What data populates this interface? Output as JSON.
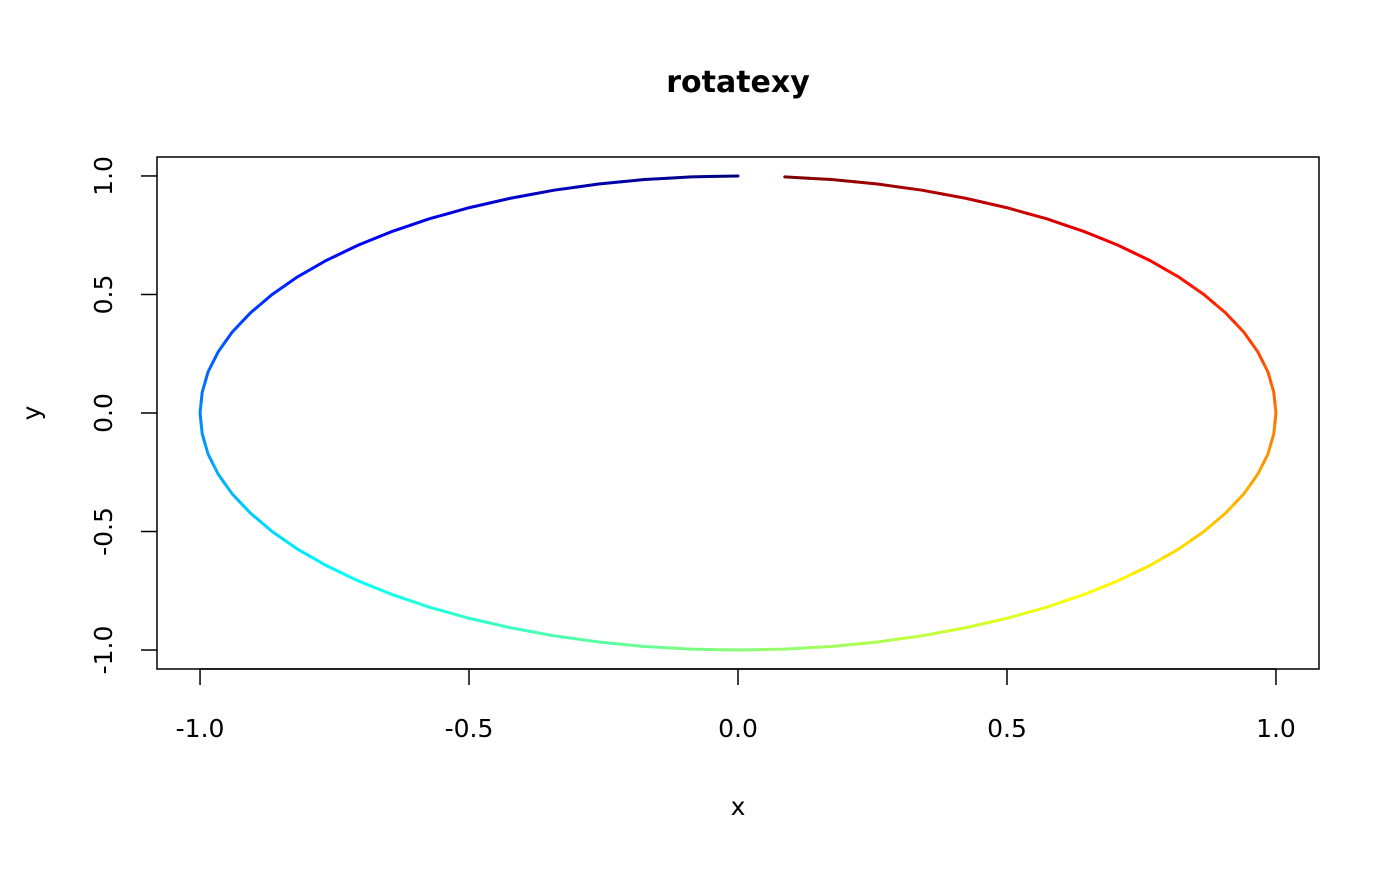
{
  "chart_data": {
    "type": "line",
    "title": "rotatexy",
    "x_label": "x",
    "y_label": "y",
    "x": [
      0,
      -0.087,
      -0.174,
      -0.259,
      -0.342,
      -0.423,
      -0.5,
      -0.574,
      -0.643,
      -0.707,
      -0.766,
      -0.819,
      -0.866,
      -0.906,
      -0.94,
      -0.966,
      -0.985,
      -0.996,
      -1,
      -0.996,
      -0.985,
      -0.966,
      -0.94,
      -0.906,
      -0.866,
      -0.819,
      -0.766,
      -0.707,
      -0.643,
      -0.574,
      -0.5,
      -0.423,
      -0.342,
      -0.259,
      -0.174,
      -0.087,
      0,
      0.087,
      0.174,
      0.259,
      0.342,
      0.423,
      0.5,
      0.574,
      0.643,
      0.707,
      0.766,
      0.819,
      0.866,
      0.906,
      0.94,
      0.966,
      0.985,
      0.996,
      1,
      0.996,
      0.985,
      0.966,
      0.94,
      0.906,
      0.866,
      0.819,
      0.766,
      0.707,
      0.643,
      0.574,
      0.5,
      0.423,
      0.342,
      0.259,
      0.174,
      0.087
    ],
    "values": [
      1,
      0.996,
      0.985,
      0.966,
      0.94,
      0.906,
      0.866,
      0.819,
      0.766,
      0.707,
      0.643,
      0.574,
      0.5,
      0.423,
      0.342,
      0.259,
      0.174,
      0.087,
      0,
      -0.087,
      -0.174,
      -0.259,
      -0.342,
      -0.423,
      -0.5,
      -0.574,
      -0.643,
      -0.707,
      -0.766,
      -0.819,
      -0.866,
      -0.906,
      -0.94,
      -0.966,
      -0.985,
      -0.996,
      -1,
      -0.996,
      -0.985,
      -0.966,
      -0.94,
      -0.906,
      -0.866,
      -0.819,
      -0.766,
      -0.707,
      -0.643,
      -0.574,
      -0.5,
      -0.423,
      -0.342,
      -0.259,
      -0.174,
      -0.087,
      0,
      0.087,
      0.174,
      0.259,
      0.342,
      0.423,
      0.5,
      0.574,
      0.643,
      0.707,
      0.766,
      0.819,
      0.866,
      0.906,
      0.94,
      0.966,
      0.985,
      0.996
    ],
    "color_stops": [
      "#00007F",
      "#0000FF",
      "#007FFF",
      "#00FFFF",
      "#7FFF7F",
      "#FFFF00",
      "#FF7F00",
      "#FF0000",
      "#7F0000"
    ],
    "xlim": [
      -1.08,
      1.08
    ],
    "ylim": [
      -1.08,
      1.08
    ],
    "xticks": [
      {
        "value": -1,
        "label": "-1.0"
      },
      -0.5,
      {
        "value": 0,
        "label": "0.0"
      },
      0.5,
      {
        "value": 1,
        "label": "1.0"
      }
    ],
    "yticks": [
      {
        "value": -1,
        "label": "-1.0"
      },
      -0.5,
      {
        "value": 0,
        "label": "0.0"
      },
      0.5,
      {
        "value": 1,
        "label": "1.0"
      }
    ]
  }
}
